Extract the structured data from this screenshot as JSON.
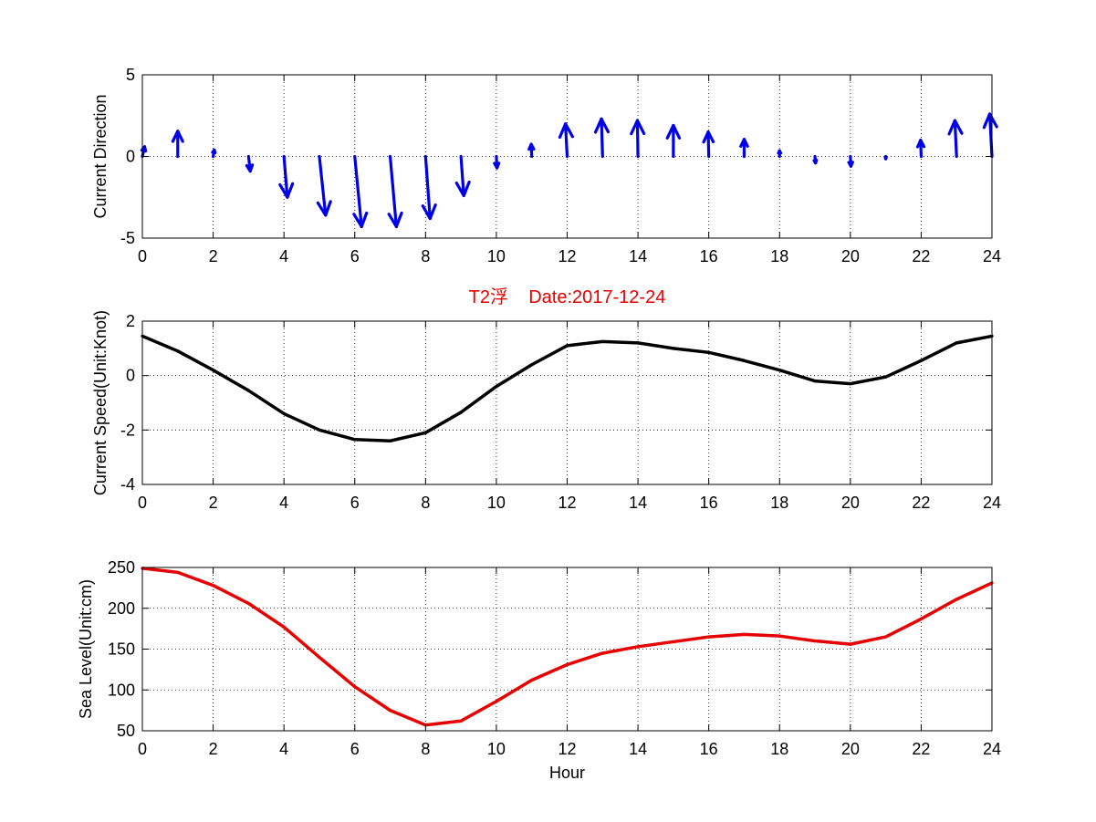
{
  "chart_data": [
    {
      "type": "quiver",
      "title": "",
      "xlabel": "",
      "ylabel": "Current Direction",
      "xlim": [
        0,
        24
      ],
      "ylim": [
        -5,
        5
      ],
      "xticks": [
        "0",
        "2",
        "4",
        "6",
        "8",
        "10",
        "12",
        "14",
        "16",
        "18",
        "20",
        "22",
        "24"
      ],
      "yticks": [
        "-5",
        "0",
        "5"
      ],
      "grid": true,
      "color": "#0000e6",
      "vectors": [
        {
          "x": 0,
          "u": 0.2,
          "v": 0.6
        },
        {
          "x": 1,
          "u": 0.0,
          "v": 1.55
        },
        {
          "x": 2,
          "u": 0.1,
          "v": 0.4
        },
        {
          "x": 3,
          "u": 0.15,
          "v": -0.9
        },
        {
          "x": 4,
          "u": 0.3,
          "v": -2.5
        },
        {
          "x": 5,
          "u": 0.55,
          "v": -3.6
        },
        {
          "x": 6,
          "u": 0.6,
          "v": -4.3
        },
        {
          "x": 7,
          "u": 0.55,
          "v": -4.3
        },
        {
          "x": 8,
          "u": 0.4,
          "v": -3.8
        },
        {
          "x": 9,
          "u": 0.25,
          "v": -2.4
        },
        {
          "x": 10,
          "u": 0.05,
          "v": -0.7
        },
        {
          "x": 11,
          "u": -0.05,
          "v": 0.75
        },
        {
          "x": 12,
          "u": -0.15,
          "v": 2.0
        },
        {
          "x": 13,
          "u": -0.1,
          "v": 2.3
        },
        {
          "x": 14,
          "u": -0.05,
          "v": 2.2
        },
        {
          "x": 15,
          "u": 0.0,
          "v": 1.9
        },
        {
          "x": 16,
          "u": -0.05,
          "v": 1.5
        },
        {
          "x": 17,
          "u": 0.0,
          "v": 1.05
        },
        {
          "x": 18,
          "u": 0.0,
          "v": 0.35
        },
        {
          "x": 19,
          "u": 0.05,
          "v": -0.4
        },
        {
          "x": 20,
          "u": 0.05,
          "v": -0.6
        },
        {
          "x": 21,
          "u": 0.0,
          "v": -0.15
        },
        {
          "x": 22,
          "u": -0.05,
          "v": 1.0
        },
        {
          "x": 23,
          "u": -0.15,
          "v": 2.2
        },
        {
          "x": 24,
          "u": -0.2,
          "v": 2.6
        }
      ]
    },
    {
      "type": "line",
      "title": "T2浮    Date:2017-12-24",
      "xlabel": "",
      "ylabel": "Current Speed(Unit:Knot)",
      "xlim": [
        0,
        24
      ],
      "ylim": [
        -4,
        2
      ],
      "xticks": [
        "0",
        "2",
        "4",
        "6",
        "8",
        "10",
        "12",
        "14",
        "16",
        "18",
        "20",
        "22",
        "24"
      ],
      "yticks": [
        "-4",
        "-2",
        "0",
        "2"
      ],
      "grid": true,
      "color": "#000000",
      "x": [
        0,
        1,
        2,
        3,
        4,
        5,
        6,
        7,
        8,
        9,
        10,
        11,
        12,
        13,
        14,
        15,
        16,
        17,
        18,
        19,
        20,
        21,
        22,
        23,
        24
      ],
      "y": [
        1.45,
        0.9,
        0.2,
        -0.55,
        -1.4,
        -2.0,
        -2.35,
        -2.4,
        -2.1,
        -1.35,
        -0.4,
        0.4,
        1.1,
        1.25,
        1.2,
        1.0,
        0.85,
        0.55,
        0.2,
        -0.2,
        -0.3,
        -0.05,
        0.55,
        1.2,
        1.45
      ]
    },
    {
      "type": "line",
      "title": "",
      "xlabel": "Hour",
      "ylabel": "Sea Level(Unit:cm)",
      "xlim": [
        0,
        24
      ],
      "ylim": [
        50,
        250
      ],
      "xticks": [
        "0",
        "2",
        "4",
        "6",
        "8",
        "10",
        "12",
        "14",
        "16",
        "18",
        "20",
        "22",
        "24"
      ],
      "yticks": [
        "50",
        "100",
        "150",
        "200",
        "250"
      ],
      "grid": true,
      "color": "#e60000",
      "x": [
        0,
        1,
        2,
        3,
        4,
        5,
        6,
        7,
        8,
        9,
        10,
        11,
        12,
        13,
        14,
        15,
        16,
        17,
        18,
        19,
        20,
        21,
        22,
        23,
        24
      ],
      "y": [
        249,
        244,
        228,
        206,
        177,
        140,
        104,
        75,
        57,
        62,
        86,
        112,
        131,
        145,
        153,
        159,
        165,
        168,
        166,
        160,
        156,
        165,
        187,
        211,
        231
      ]
    }
  ]
}
